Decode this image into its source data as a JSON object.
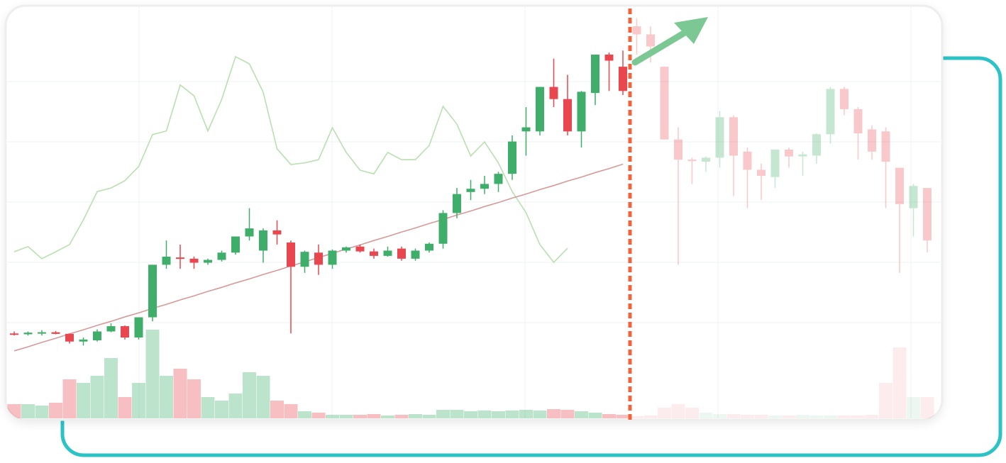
{
  "chart_data": {
    "type": "candlestick",
    "ylim": [
      0,
      100
    ],
    "volume_lim": [
      0,
      150
    ],
    "up_color": "#3fae6a",
    "down_color": "#e8474f",
    "actual": {
      "open": [
        21,
        20.8,
        21,
        21.3,
        20.9,
        19,
        19.3,
        21.5,
        22.8,
        20,
        25,
        38,
        39.8,
        39.5,
        38.5,
        39.2,
        41,
        45,
        41.5,
        46.5,
        43.5,
        37.5,
        41,
        38,
        41.5,
        42.5,
        41.3,
        40.2,
        42,
        39.5,
        41.5,
        43.2,
        50.8,
        56,
        56.8,
        58,
        60.5,
        71,
        71,
        82,
        79,
        71,
        80.5,
        90,
        87
      ],
      "high": [
        21.5,
        21.5,
        21.8,
        21.6,
        21,
        20,
        22,
        23.5,
        23,
        25,
        38,
        44,
        43,
        40,
        39.5,
        41.5,
        45,
        52,
        47,
        49,
        44,
        41.5,
        43,
        41.8,
        42.5,
        43,
        42,
        42.5,
        42.5,
        42,
        43.5,
        51.5,
        57,
        59,
        60,
        61,
        70,
        77,
        82,
        89,
        85,
        81,
        90,
        90.5,
        91
      ],
      "low": [
        20.5,
        20.5,
        20.5,
        20.8,
        18.5,
        18,
        19,
        21.3,
        19.5,
        19.5,
        24,
        37,
        37,
        37,
        38,
        38.8,
        40.5,
        44,
        38.5,
        43,
        21,
        36,
        35.5,
        37,
        41,
        41,
        39.5,
        40,
        39,
        39,
        41,
        42,
        49.5,
        54,
        55.5,
        56,
        59,
        65,
        70,
        77,
        70,
        67,
        77.5,
        81,
        80
      ],
      "close": [
        20.8,
        21.2,
        21.3,
        20.9,
        19,
        19.5,
        21.5,
        22.8,
        20,
        25,
        38,
        40,
        39.5,
        38.5,
        39.2,
        41,
        45,
        47,
        46.5,
        45.5,
        37.5,
        41.2,
        38,
        41.5,
        42.3,
        41.3,
        40.2,
        41.5,
        39.5,
        41.5,
        43.2,
        50.8,
        55.5,
        56.8,
        58,
        60.5,
        68.5,
        72,
        82,
        79,
        71,
        80.8,
        90,
        88.5,
        81
      ],
      "volume": [
        20,
        20,
        18,
        22,
        55,
        50,
        60,
        85,
        30,
        50,
        125,
        60,
        70,
        55,
        30,
        25,
        35,
        65,
        60,
        25,
        20,
        10,
        8,
        5,
        5,
        5,
        6,
        4,
        5,
        6,
        5,
        12,
        12,
        10,
        11,
        10,
        11,
        12,
        11,
        13,
        12,
        10,
        8,
        6,
        5
      ]
    },
    "projected": {
      "open": [
        97,
        95,
        87,
        69,
        64,
        63.5,
        64.5,
        74.5,
        66,
        61.5,
        59.7,
        66.5,
        64.8,
        65,
        70.3,
        81.5,
        76.5,
        71.5,
        71,
        62,
        52,
        57
      ],
      "high": [
        99,
        97,
        87,
        72,
        64.5,
        64.8,
        76,
        75,
        67,
        63,
        66,
        67,
        66,
        70.5,
        82,
        82,
        77,
        72.5,
        72,
        62,
        58,
        57
      ],
      "low": [
        90,
        88,
        69,
        38,
        58,
        61,
        62,
        55,
        52,
        54,
        57,
        62,
        60,
        63,
        68,
        75,
        64,
        64,
        52,
        36,
        45,
        41
      ],
      "close": [
        95,
        92,
        69,
        64,
        63.8,
        64.5,
        74.5,
        65,
        61.5,
        60,
        66.5,
        64.8,
        65.3,
        70.3,
        81.5,
        76.5,
        70.5,
        66,
        63.5,
        53,
        57.5,
        44
      ],
      "volume": [
        3,
        4,
        15,
        20,
        15,
        8,
        6,
        6,
        5,
        5,
        4,
        4,
        5,
        4,
        4,
        4,
        4,
        5,
        50,
        100,
        30,
        30
      ]
    },
    "series": [
      {
        "color": "#b9dfb1",
        "values": [
          41.2,
          42.5,
          39.5,
          41.2,
          43,
          49.1,
          56.1,
          57,
          58.8,
          62.3,
          70.2,
          71.1,
          82.5,
          79.8,
          71.1,
          78.9,
          89.5,
          87.7,
          80.7,
          66.7,
          62.8,
          63.2,
          64,
          71.9,
          65.8,
          61.4,
          60.5,
          65.8,
          64,
          64,
          67.5,
          77.2,
          72.8,
          64.9,
          68.4,
          63.2,
          56.1,
          50.9,
          43,
          38.6,
          42.1,
          null,
          null,
          null,
          null
        ]
      },
      {
        "color": "#d59a9a",
        "values": [
          16.7,
          17.7,
          18.8,
          19.8,
          20.9,
          21.9,
          23,
          24,
          25.1,
          26.1,
          27.2,
          28.2,
          29.3,
          30.3,
          31.4,
          32.4,
          33.5,
          34.5,
          35.6,
          36.6,
          37.7,
          38.7,
          39.8,
          40.8,
          41.9,
          42.9,
          44,
          45,
          46.1,
          47.1,
          48.2,
          49.2,
          50.3,
          51.3,
          52.4,
          53.4,
          54.5,
          55.5,
          56.6,
          57.6,
          58.7,
          59.7,
          60.8,
          61.8,
          62.9
        ]
      }
    ]
  }
}
